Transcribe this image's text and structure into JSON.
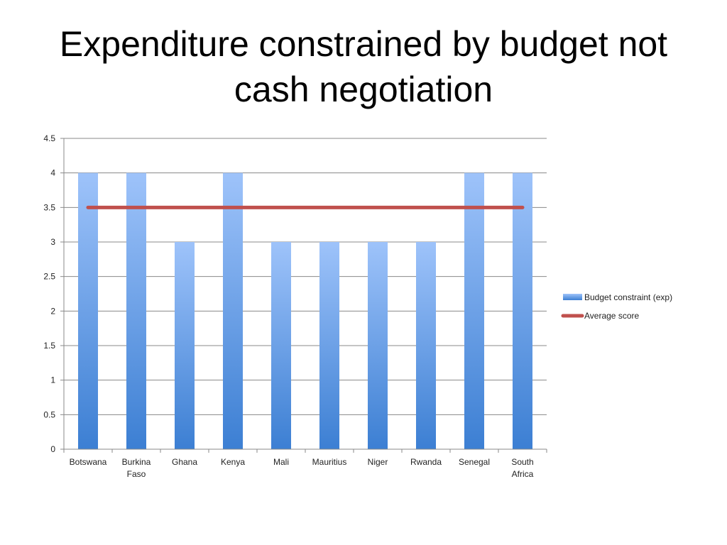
{
  "slide": {
    "title": "Expenditure constrained by budget not cash negotiation"
  },
  "colors": {
    "bar_top": "#9EC3FA",
    "bar_bottom": "#3C7FD3",
    "line": "#C0504D",
    "grid": "#888888"
  },
  "chart_data": {
    "type": "bar",
    "categories": [
      "Botswana",
      "Burkina Faso",
      "Ghana",
      "Kenya",
      "Mali",
      "Mauritius",
      "Niger",
      "Rwanda",
      "Senegal",
      "South Africa"
    ],
    "series": [
      {
        "name": "Budget constraint (exp)",
        "type": "bar",
        "values": [
          4,
          4,
          3,
          4,
          3,
          3,
          3,
          3,
          4,
          4
        ]
      },
      {
        "name": "Average score",
        "type": "line",
        "values": [
          3.5,
          3.5,
          3.5,
          3.5,
          3.5,
          3.5,
          3.5,
          3.5,
          3.5,
          3.5
        ]
      }
    ],
    "yticks": [
      "0",
      "0.5",
      "1",
      "1.5",
      "2",
      "2.5",
      "3",
      "3.5",
      "4",
      "4.5"
    ],
    "ylim": [
      0,
      4.5
    ],
    "grid": true,
    "legend": "right",
    "xlabel": "",
    "ylabel": ""
  }
}
